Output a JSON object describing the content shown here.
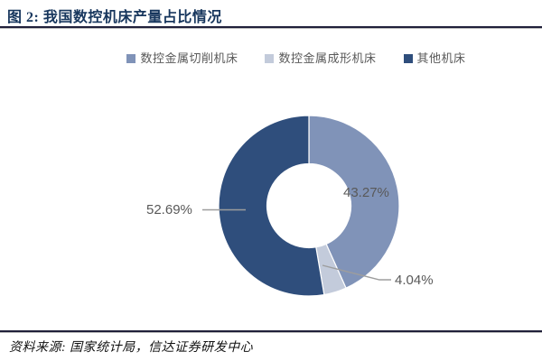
{
  "header": {
    "title": "图 2: 我国数控机床产量占比情况"
  },
  "footer": {
    "source": "资料来源: 国家统计局，信达证券研发中心"
  },
  "chart_data": {
    "type": "pie",
    "subtype": "donut",
    "title": "我国数控机床产量占比情况",
    "series": [
      {
        "name": "数控金属切削机床",
        "value": 43.27,
        "label": "43.27%",
        "color": "#8093b8"
      },
      {
        "name": "数控金属成形机床",
        "value": 4.04,
        "label": "4.04%",
        "color": "#c3cbdb"
      },
      {
        "name": "其他机床",
        "value": 52.69,
        "label": "52.69%",
        "color": "#2f4e7c"
      }
    ],
    "start_angle_deg": 0,
    "direction": "clockwise",
    "inner_radius_ratio": 0.465,
    "legend_position": "top",
    "label_color": "#595959",
    "leader_line_color": "#9d9d9d",
    "slice_border_color": "#ffffff"
  }
}
